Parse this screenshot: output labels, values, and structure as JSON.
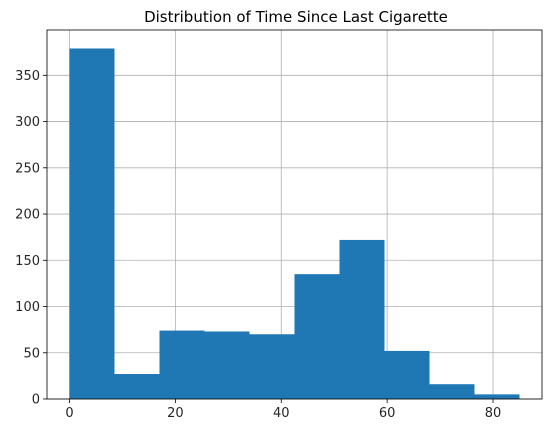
{
  "chart_data": {
    "type": "bar",
    "title": "Distribution of Time Since Last Cigarette",
    "xlabel": "",
    "ylabel": "",
    "bar_color": "#1f77b4",
    "grid": true,
    "xlim": [
      -4.25,
      89.25
    ],
    "ylim": [
      0,
      399
    ],
    "x_ticks": [
      0,
      20,
      40,
      60,
      80
    ],
    "y_ticks": [
      0,
      50,
      100,
      150,
      200,
      250,
      300,
      350
    ],
    "bin_edges": [
      0,
      8.5,
      17,
      25.5,
      34,
      42.5,
      51,
      59.5,
      68,
      76.5,
      85
    ],
    "values": [
      379,
      27,
      74,
      73,
      70,
      135,
      172,
      52,
      16,
      5
    ]
  }
}
